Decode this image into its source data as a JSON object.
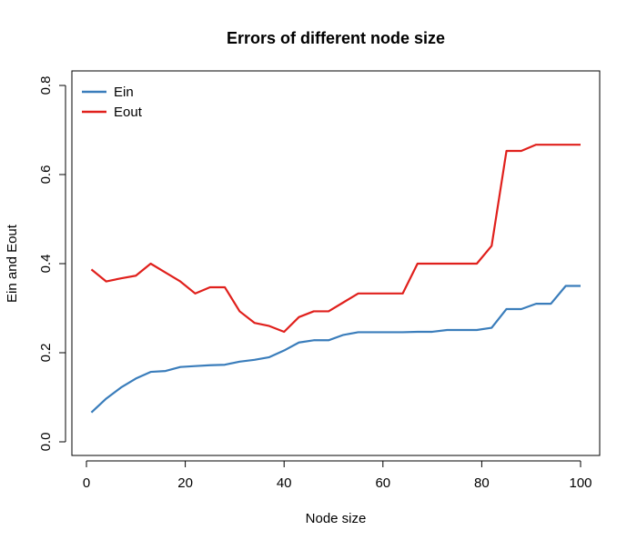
{
  "chart_data": {
    "type": "line",
    "title": "Errors of different node size",
    "xlabel": "Node size",
    "ylabel": "Ein and Eout",
    "xlim": [
      0,
      100
    ],
    "ylim": [
      0,
      0.8
    ],
    "grid": false,
    "legend_position": "top-left",
    "x_ticks": [
      0,
      20,
      40,
      60,
      80,
      100
    ],
    "x_tick_labels": [
      "0",
      "20",
      "40",
      "60",
      "80",
      "100"
    ],
    "y_ticks": [
      0.0,
      0.2,
      0.4,
      0.6,
      0.8
    ],
    "y_tick_labels": [
      "0.0",
      "0.2",
      "0.4",
      "0.6",
      "0.8"
    ],
    "series": [
      {
        "name": "Ein",
        "color": "#3a7dbb",
        "x": [
          1,
          4,
          7,
          10,
          13,
          16,
          19,
          22,
          25,
          28,
          31,
          34,
          37,
          40,
          43,
          46,
          49,
          52,
          55,
          58,
          61,
          64,
          67,
          70,
          73,
          76,
          79,
          82,
          85,
          88,
          91,
          94,
          97,
          100
        ],
        "y": [
          0.066,
          0.097,
          0.122,
          0.142,
          0.157,
          0.159,
          0.168,
          0.17,
          0.172,
          0.173,
          0.18,
          0.184,
          0.19,
          0.205,
          0.223,
          0.228,
          0.228,
          0.24,
          0.246,
          0.246,
          0.246,
          0.246,
          0.247,
          0.247,
          0.251,
          0.251,
          0.251,
          0.256,
          0.298,
          0.298,
          0.31,
          0.31,
          0.35,
          0.35
        ]
      },
      {
        "name": "Eout",
        "color": "#e0201c",
        "x": [
          1,
          4,
          7,
          10,
          13,
          16,
          19,
          22,
          25,
          28,
          31,
          34,
          37,
          40,
          43,
          46,
          49,
          52,
          55,
          58,
          61,
          64,
          67,
          70,
          73,
          76,
          79,
          82,
          85,
          88,
          91,
          94,
          97,
          100
        ],
        "y": [
          0.387,
          0.36,
          0.367,
          0.373,
          0.4,
          0.38,
          0.36,
          0.333,
          0.347,
          0.347,
          0.293,
          0.267,
          0.26,
          0.247,
          0.28,
          0.293,
          0.293,
          0.313,
          0.333,
          0.333,
          0.333,
          0.333,
          0.4,
          0.4,
          0.4,
          0.4,
          0.4,
          0.44,
          0.653,
          0.653,
          0.667,
          0.667,
          0.667,
          0.667
        ]
      }
    ]
  }
}
